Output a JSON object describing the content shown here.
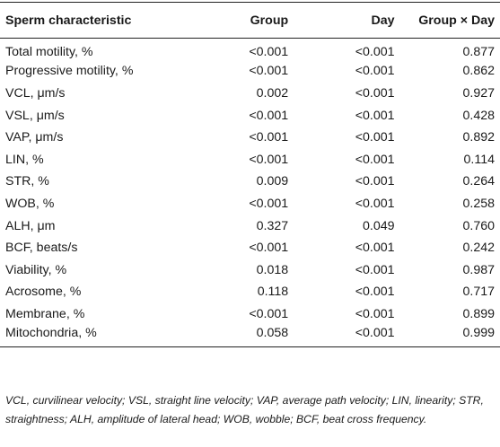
{
  "table": {
    "headers": {
      "characteristic": "Sperm characteristic",
      "group": "Group",
      "day": "Day",
      "group_x_day": "Group × Day"
    },
    "rows": [
      {
        "characteristic": "Total motility, %",
        "group": "<0.001",
        "day": "<0.001",
        "group_x_day": "0.877"
      },
      {
        "characteristic": "Progressive motility, %",
        "group": "<0.001",
        "day": "<0.001",
        "group_x_day": "0.862"
      },
      {
        "characteristic": "VCL, μm/s",
        "group": "0.002",
        "day": "<0.001",
        "group_x_day": "0.927"
      },
      {
        "characteristic": "VSL, μm/s",
        "group": "<0.001",
        "day": "<0.001",
        "group_x_day": "0.428"
      },
      {
        "characteristic": "VAP, μm/s",
        "group": "<0.001",
        "day": "<0.001",
        "group_x_day": "0.892"
      },
      {
        "characteristic": "LIN, %",
        "group": "<0.001",
        "day": "<0.001",
        "group_x_day": "0.114"
      },
      {
        "characteristic": "STR, %",
        "group": "0.009",
        "day": "<0.001",
        "group_x_day": "0.264"
      },
      {
        "characteristic": "WOB, %",
        "group": "<0.001",
        "day": "<0.001",
        "group_x_day": "0.258"
      },
      {
        "characteristic": "ALH, μm",
        "group": "0.327",
        "day": "0.049",
        "group_x_day": "0.760"
      },
      {
        "characteristic": "BCF, beats/s",
        "group": "<0.001",
        "day": "<0.001",
        "group_x_day": "0.242"
      },
      {
        "characteristic": "Viability, %",
        "group": "0.018",
        "day": "<0.001",
        "group_x_day": "0.987"
      },
      {
        "characteristic": "Acrosome, %",
        "group": "0.118",
        "day": "<0.001",
        "group_x_day": "0.717"
      },
      {
        "characteristic": "Membrane, %",
        "group": "<0.001",
        "day": "<0.001",
        "group_x_day": "0.899"
      },
      {
        "characteristic": "Mitochondria, %",
        "group": "0.058",
        "day": "<0.001",
        "group_x_day": "0.999"
      }
    ]
  },
  "footnote": "VCL, curvilinear velocity; VSL, straight line velocity; VAP, average path velocity; LIN, linearity; STR, straightness; ALH, amplitude of lateral head; WOB, wobble; BCF, beat cross frequency."
}
